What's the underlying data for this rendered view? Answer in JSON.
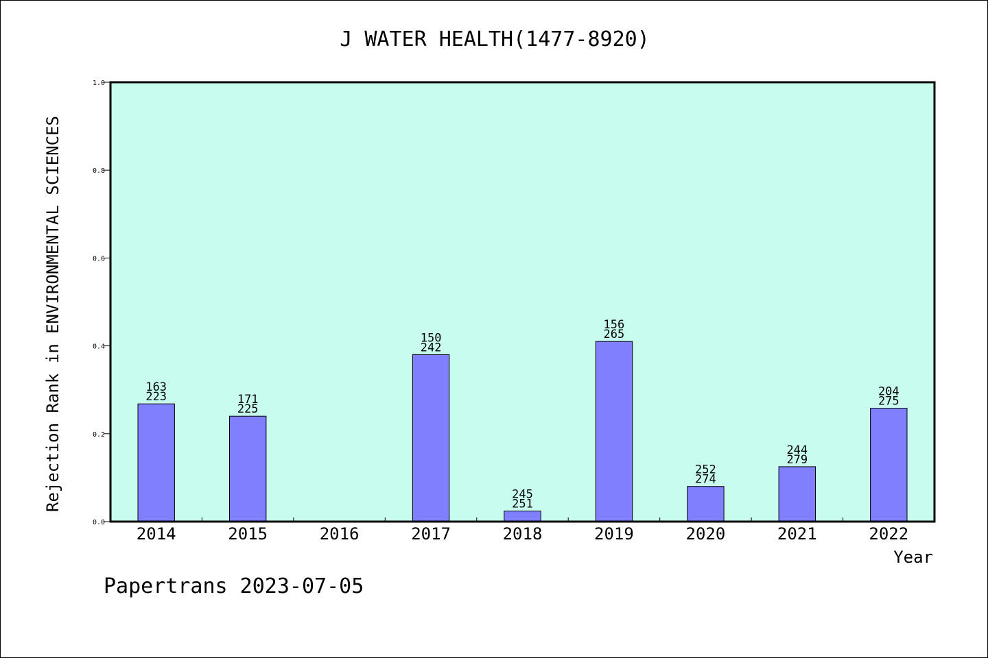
{
  "chart_data": {
    "type": "bar",
    "title": "J WATER HEALTH(1477-8920)",
    "xlabel": "Year",
    "ylabel": "Rejection Rank in ENVIRONMENTAL SCIENCES",
    "footer": "Papertrans 2023-07-05",
    "categories": [
      "2014",
      "2015",
      "2016",
      "2017",
      "2018",
      "2019",
      "2020",
      "2021",
      "2022"
    ],
    "values": [
      0.268,
      0.24,
      null,
      0.38,
      0.024,
      0.41,
      0.08,
      0.125,
      0.258
    ],
    "label_top": [
      "163",
      "171",
      "",
      "150",
      "245",
      "156",
      "252",
      "244",
      "204"
    ],
    "label_bottom": [
      "223",
      "225",
      "",
      "242",
      "251",
      "265",
      "274",
      "279",
      "275"
    ],
    "ylim": [
      0,
      1.0
    ],
    "yticks": [
      "0.0",
      "0.2",
      "0.4",
      "0.6",
      "0.8",
      "1.0"
    ],
    "grid": false,
    "colors": {
      "plot_background": "#c8fcef",
      "bar_fill": "#8080ff",
      "bar_stroke": "#000000",
      "axis": "#000000"
    }
  }
}
